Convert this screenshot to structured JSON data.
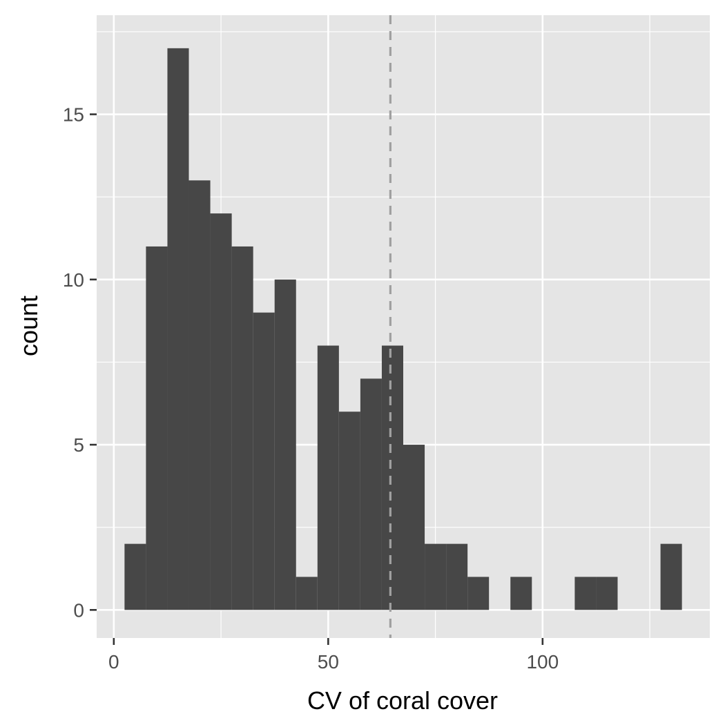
{
  "chart_data": {
    "type": "bar",
    "xlabel": "CV of coral cover",
    "ylabel": "count",
    "xlim": [
      -4,
      139
    ],
    "ylim": [
      -0.85,
      18
    ],
    "x_ticks": [
      0,
      50,
      100
    ],
    "x_minor_ticks": [
      25,
      75,
      125
    ],
    "y_ticks": [
      0,
      5,
      10,
      15
    ],
    "y_minor_ticks": [
      2.5,
      7.5,
      12.5,
      17.5
    ],
    "grid": true,
    "bin_width": 5,
    "bins": [
      {
        "start": 2.5,
        "end": 7.5,
        "count": 2
      },
      {
        "start": 7.5,
        "end": 12.5,
        "count": 11
      },
      {
        "start": 12.5,
        "end": 17.5,
        "count": 17
      },
      {
        "start": 17.5,
        "end": 22.5,
        "count": 13
      },
      {
        "start": 22.5,
        "end": 27.5,
        "count": 12
      },
      {
        "start": 27.5,
        "end": 32.5,
        "count": 11
      },
      {
        "start": 32.5,
        "end": 37.5,
        "count": 9
      },
      {
        "start": 37.5,
        "end": 42.5,
        "count": 10
      },
      {
        "start": 42.5,
        "end": 47.5,
        "count": 1
      },
      {
        "start": 47.5,
        "end": 52.5,
        "count": 8
      },
      {
        "start": 52.5,
        "end": 57.5,
        "count": 6
      },
      {
        "start": 57.5,
        "end": 62.5,
        "count": 7
      },
      {
        "start": 62.5,
        "end": 67.5,
        "count": 8
      },
      {
        "start": 67.5,
        "end": 72.5,
        "count": 5
      },
      {
        "start": 72.5,
        "end": 77.5,
        "count": 2
      },
      {
        "start": 77.5,
        "end": 82.5,
        "count": 2
      },
      {
        "start": 82.5,
        "end": 87.5,
        "count": 1
      },
      {
        "start": 87.5,
        "end": 92.5,
        "count": 0
      },
      {
        "start": 92.5,
        "end": 97.5,
        "count": 1
      },
      {
        "start": 97.5,
        "end": 102.5,
        "count": 0
      },
      {
        "start": 102.5,
        "end": 107.5,
        "count": 0
      },
      {
        "start": 107.5,
        "end": 112.5,
        "count": 1
      },
      {
        "start": 112.5,
        "end": 117.5,
        "count": 1
      },
      {
        "start": 117.5,
        "end": 122.5,
        "count": 0
      },
      {
        "start": 122.5,
        "end": 127.5,
        "count": 0
      },
      {
        "start": 127.5,
        "end": 132.5,
        "count": 2
      }
    ],
    "vline": {
      "x": 64.5,
      "style": "dashed",
      "color": "#a0a0a0"
    },
    "colors": {
      "panel_background": "#e5e5e5",
      "grid": "#ffffff",
      "bar_fill": "#474747",
      "tick_text": "#4d4d4d",
      "axis_ticks": "#333333"
    }
  }
}
